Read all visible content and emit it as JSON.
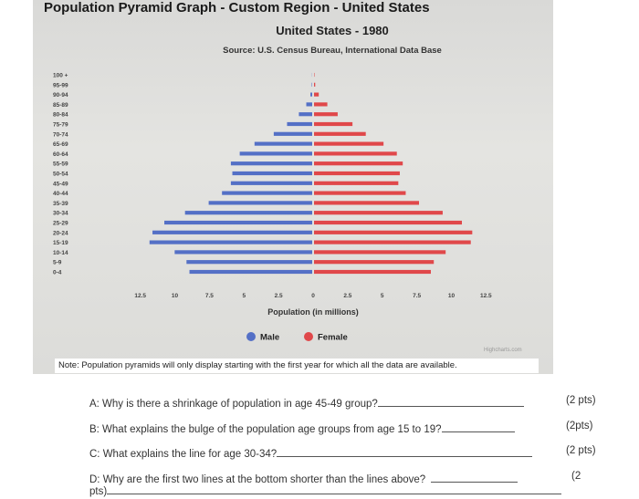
{
  "page_title": "Population Pyramid Graph - Custom Region - United States",
  "note": "Note: Population pyramids will only display starting with the first year for which all the data are available.",
  "credits": "Highcharts.com",
  "colors": {
    "male": "#5470c6",
    "female": "#e0484a"
  },
  "questions": [
    {
      "text": "A: Why is there a shrinkage of population in age 45-49 group?",
      "points": "(2 pts)"
    },
    {
      "text": "B: What explains the bulge of the population age groups from age 15 to 19?",
      "points": "(2pts)"
    },
    {
      "text": "C: What explains the line for age 30-34?",
      "points": "(2 pts)"
    },
    {
      "text": "D: Why are the first two lines at the bottom shorter than the lines above?",
      "points": "(2",
      "continuation": "pts)"
    }
  ],
  "chart_data": {
    "type": "bar",
    "orientation": "horizontal-pyramid",
    "title": "United States - 1980",
    "subtitle": "Source: U.S. Census Bureau, International Data Base",
    "xlabel": "Population (in millions)",
    "xlim": [
      -12.5,
      12.5
    ],
    "x_ticks": [
      "12.5",
      "10",
      "7.5",
      "5",
      "2.5",
      "0",
      "2.5",
      "5",
      "7.5",
      "10",
      "12.5"
    ],
    "legend_placement": "bottom",
    "categories": [
      "100 +",
      "95-99",
      "90-94",
      "85-89",
      "80-84",
      "75-79",
      "70-74",
      "65-69",
      "60-64",
      "55-59",
      "50-54",
      "45-49",
      "40-44",
      "35-39",
      "30-34",
      "25-29",
      "20-24",
      "15-19",
      "10-14",
      "5-9",
      "0-4"
    ],
    "series": [
      {
        "name": "Male",
        "values": [
          0.01,
          0.03,
          0.12,
          0.4,
          0.9,
          1.7,
          2.6,
          3.9,
          4.9,
          5.5,
          5.4,
          5.5,
          6.1,
          7.0,
          8.6,
          10.0,
          10.8,
          11.0,
          9.3,
          8.5,
          8.3
        ]
      },
      {
        "name": "Female",
        "values": [
          0.03,
          0.08,
          0.32,
          0.9,
          1.6,
          2.6,
          3.5,
          4.7,
          5.6,
          6.0,
          5.8,
          5.7,
          6.2,
          7.1,
          8.7,
          10.0,
          10.7,
          10.6,
          8.9,
          8.1,
          7.9
        ]
      }
    ]
  }
}
